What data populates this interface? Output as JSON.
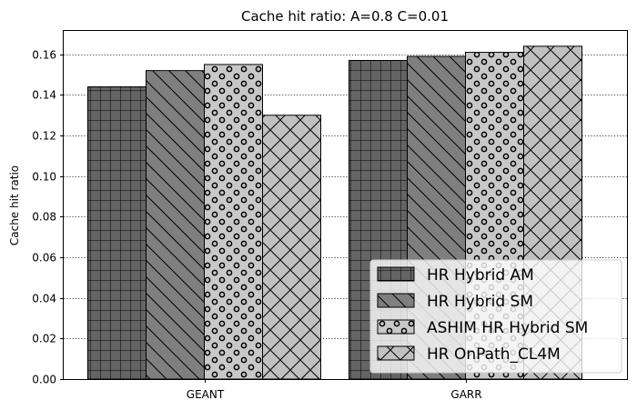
{
  "chart_data": {
    "type": "bar",
    "title": "Cache hit ratio: A=0.8 C=0.01",
    "xlabel": "",
    "ylabel": "Cache hit ratio",
    "ylim": [
      0,
      0.172
    ],
    "yticks": [
      "0.00",
      "0.02",
      "0.04",
      "0.06",
      "0.08",
      "0.10",
      "0.12",
      "0.14",
      "0.16"
    ],
    "categories": [
      "GEANT",
      "GARR"
    ],
    "grid": "horizontal dotted",
    "legend_position": "lower-right",
    "series": [
      {
        "name": "HR Hybrid AM",
        "values": [
          0.144,
          0.157
        ],
        "color": "#646464",
        "pattern": "grid"
      },
      {
        "name": "HR Hybrid SM",
        "values": [
          0.152,
          0.159
        ],
        "color": "#7f7f7f",
        "pattern": "diagonal"
      },
      {
        "name": "ASHIM HR Hybrid SM",
        "values": [
          0.155,
          0.161
        ],
        "color": "#c8c8c8",
        "pattern": "circles"
      },
      {
        "name": "HR OnPath_CL4M",
        "values": [
          0.13,
          0.164
        ],
        "color": "#c0c0c0",
        "pattern": "crosshatch"
      }
    ]
  }
}
